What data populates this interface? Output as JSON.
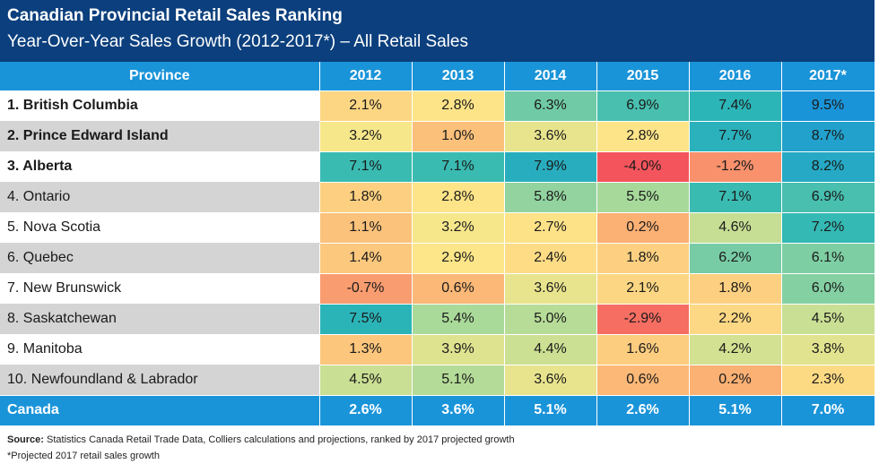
{
  "header": {
    "title": "Canadian Provincial Retail Sales Ranking",
    "subtitle": "Year-Over-Year Sales Growth (2012-2017*) – All Retail Sales"
  },
  "chart_data": {
    "type": "table",
    "columns": [
      "Province",
      "2012",
      "2013",
      "2014",
      "2015",
      "2016",
      "2017*"
    ],
    "rows": [
      {
        "label": "1. British Columbia",
        "bold": true,
        "values": [
          "2.1%",
          "2.8%",
          "6.3%",
          "6.9%",
          "7.4%",
          "9.5%"
        ]
      },
      {
        "label": "2. Prince Edward Island",
        "bold": true,
        "values": [
          "3.2%",
          "1.0%",
          "3.6%",
          "2.8%",
          "7.7%",
          "8.7%"
        ]
      },
      {
        "label": "3. Alberta",
        "bold": true,
        "values": [
          "7.1%",
          "7.1%",
          "7.9%",
          "-4.0%",
          "-1.2%",
          "8.2%"
        ]
      },
      {
        "label": "4. Ontario",
        "bold": false,
        "values": [
          "1.8%",
          "2.8%",
          "5.8%",
          "5.5%",
          "7.1%",
          "6.9%"
        ]
      },
      {
        "label": "5. Nova Scotia",
        "bold": false,
        "values": [
          "1.1%",
          "3.2%",
          "2.7%",
          "0.2%",
          "4.6%",
          "7.2%"
        ]
      },
      {
        "label": "6. Quebec",
        "bold": false,
        "values": [
          "1.4%",
          "2.9%",
          "2.4%",
          "1.8%",
          "6.2%",
          "6.1%"
        ]
      },
      {
        "label": "7. New Brunswick",
        "bold": false,
        "values": [
          "-0.7%",
          "0.6%",
          "3.6%",
          "2.1%",
          "1.8%",
          "6.0%"
        ]
      },
      {
        "label": "8. Saskatchewan",
        "bold": false,
        "values": [
          "7.5%",
          "5.4%",
          "5.0%",
          "-2.9%",
          "2.2%",
          "4.5%"
        ]
      },
      {
        "label": "9. Manitoba",
        "bold": false,
        "values": [
          "1.3%",
          "3.9%",
          "4.4%",
          "1.6%",
          "4.2%",
          "3.8%"
        ]
      },
      {
        "label": "10. Newfoundland & Labrador",
        "bold": false,
        "values": [
          "4.5%",
          "5.1%",
          "3.6%",
          "0.6%",
          "0.2%",
          "2.3%"
        ]
      }
    ],
    "total": {
      "label": "Canada",
      "values": [
        "2.6%",
        "3.6%",
        "5.1%",
        "2.6%",
        "5.1%",
        "7.0%"
      ]
    },
    "heat_colors": {
      "low": "#f4555c",
      "mid_low": "#fbb676",
      "mid": "#fde88a",
      "mid_high": "#a6d99a",
      "high": "#2db7b5",
      "top": "#1a94d9"
    }
  },
  "notes": {
    "source_label": "Source:",
    "source_text": " Statistics Canada Retail Trade Data, Colliers calculations and projections, ranked by 2017 projected growth",
    "projected": "*Projected 2017 retail sales growth"
  }
}
